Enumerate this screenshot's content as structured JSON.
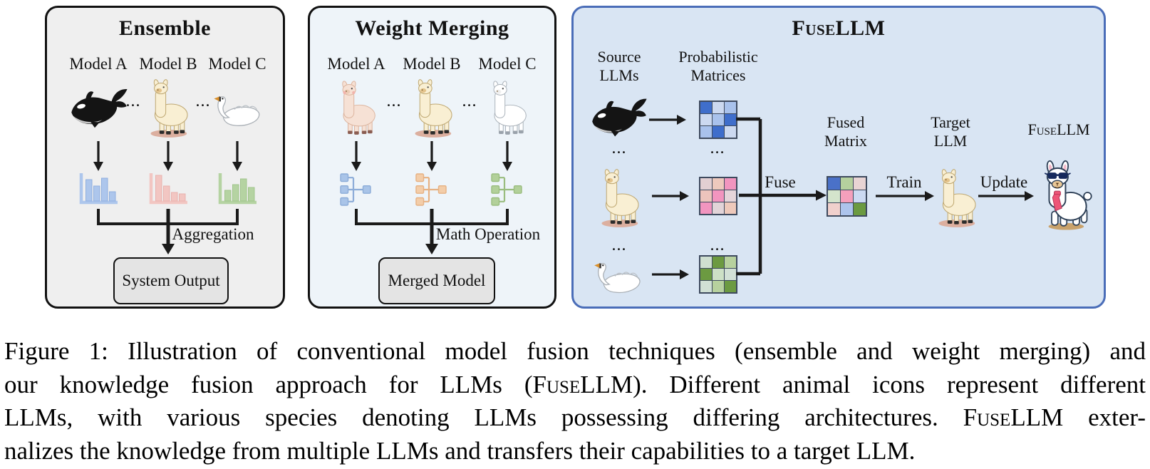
{
  "panels": {
    "ensemble": {
      "title": "Ensemble",
      "separator": "...",
      "models": [
        {
          "label": "Model A",
          "icon": "orca"
        },
        {
          "label": "Model B",
          "icon": "llama"
        },
        {
          "label": "Model C",
          "icon": "swan"
        }
      ],
      "distribution_icons": [
        {
          "name": "distribution-blue",
          "fill": "#adc6ec",
          "stroke": "#8fafdf",
          "bars": [
            30,
            21,
            32,
            13
          ]
        },
        {
          "name": "distribution-pink",
          "fill": "#f2c6c2",
          "stroke": "#e8b2ae",
          "bars": [
            36,
            21,
            12,
            10
          ]
        },
        {
          "name": "distribution-green",
          "fill": "#b5d3a2",
          "stroke": "#a0c48b",
          "bars": [
            15,
            23,
            31,
            19
          ]
        }
      ],
      "arrow_label": "Aggregation",
      "output_label": "System Output"
    },
    "weight_merging": {
      "title": "Weight Merging",
      "separator": "...",
      "models": [
        {
          "label": "Model A",
          "icon": "llama-pink"
        },
        {
          "label": "Model B",
          "icon": "llama"
        },
        {
          "label": "Model C",
          "icon": "llama-white"
        }
      ],
      "weight_icons": [
        {
          "name": "weights-blue",
          "fill": "#a9c4e8",
          "stroke": "#8cacd8"
        },
        {
          "name": "weights-orange",
          "fill": "#f3cda9",
          "stroke": "#e6b183"
        },
        {
          "name": "weights-green",
          "fill": "#b2d09a",
          "stroke": "#9abd7f"
        }
      ],
      "arrow_label": "Math Operation",
      "output_label": "Merged Model"
    },
    "fusellm": {
      "title": "FuseLLM",
      "separator": "...",
      "col_source": [
        "Source",
        "LLMs"
      ],
      "col_matrices": [
        "Probabilistic",
        "Matrices"
      ],
      "rows": [
        {
          "icon": "orca",
          "matrix": "blue"
        },
        {
          "icon": "llama",
          "matrix": "pink"
        },
        {
          "icon": "swan",
          "matrix": "green"
        }
      ],
      "labels": {
        "fuse": "Fuse",
        "fused_matrix": [
          "Fused",
          "Matrix"
        ],
        "train": "Train",
        "target_llm": [
          "Target",
          "LLM"
        ],
        "update": "Update",
        "fusellm": "FuseLLM"
      },
      "matrices": {
        "blue": [
          [
            "#3f6ecb",
            "#ccd9f0",
            "#a9c2ec"
          ],
          [
            "#ccd9f0",
            "#a9c2ec",
            "#3f6ecb"
          ],
          [
            "#a9c2ec",
            "#3f6ecb",
            "#ccd9f0"
          ]
        ],
        "pink": [
          [
            "#e2cfd2",
            "#edc9bd",
            "#f295bf"
          ],
          [
            "#edc4bc",
            "#f295bf",
            "#e5d5da"
          ],
          [
            "#f295bf",
            "#e2d4d8",
            "#eec9bb"
          ]
        ],
        "green": [
          [
            "#cfdfd0",
            "#6c9a41",
            "#b7d19e"
          ],
          [
            "#6c9a41",
            "#cde0c6",
            "#d2e0d6"
          ],
          [
            "#d0e0d4",
            "#b7d19e",
            "#6c9a41"
          ]
        ],
        "fused": [
          [
            "#4a71c8",
            "#b5d09e",
            "#e8d4d4"
          ],
          [
            "#d4e4cc",
            "#f4a0bc",
            "#ccdaf2"
          ],
          [
            "#f0d0cc",
            "#adc4ec",
            "#6b9a40"
          ]
        ]
      }
    }
  },
  "caption": {
    "lines": [
      [
        {
          "text": "Figure 1: Illustration of conventional model fusion techniques (ensemble and weight merging) and"
        }
      ],
      [
        {
          "text": "our knowledge fusion approach for LLMs ("
        },
        {
          "text": "FuseLLM",
          "smallcaps": true
        },
        {
          "text": "). Different animal icons represent different"
        }
      ],
      [
        {
          "text": "LLMs, with various species denoting LLMs possessing differing architectures. "
        },
        {
          "text": "FuseLLM",
          "smallcaps": true
        },
        {
          "text": " exter-"
        }
      ],
      [
        {
          "text": "nalizes the knowledge from multiple LLMs and transfers their capabilities to a target LLM."
        }
      ]
    ]
  },
  "colors": {
    "ensemble_bg": "#efefef",
    "merging_bg": "#eef4f9",
    "fusellm_bg": "#d9e5f3",
    "fusellm_border": "#4a6db8",
    "panel_border": "#111111",
    "output_box_bg": "#e4e4e4",
    "matrix_grid": "#3e4a5e",
    "arrow": "#1a1a1a"
  }
}
